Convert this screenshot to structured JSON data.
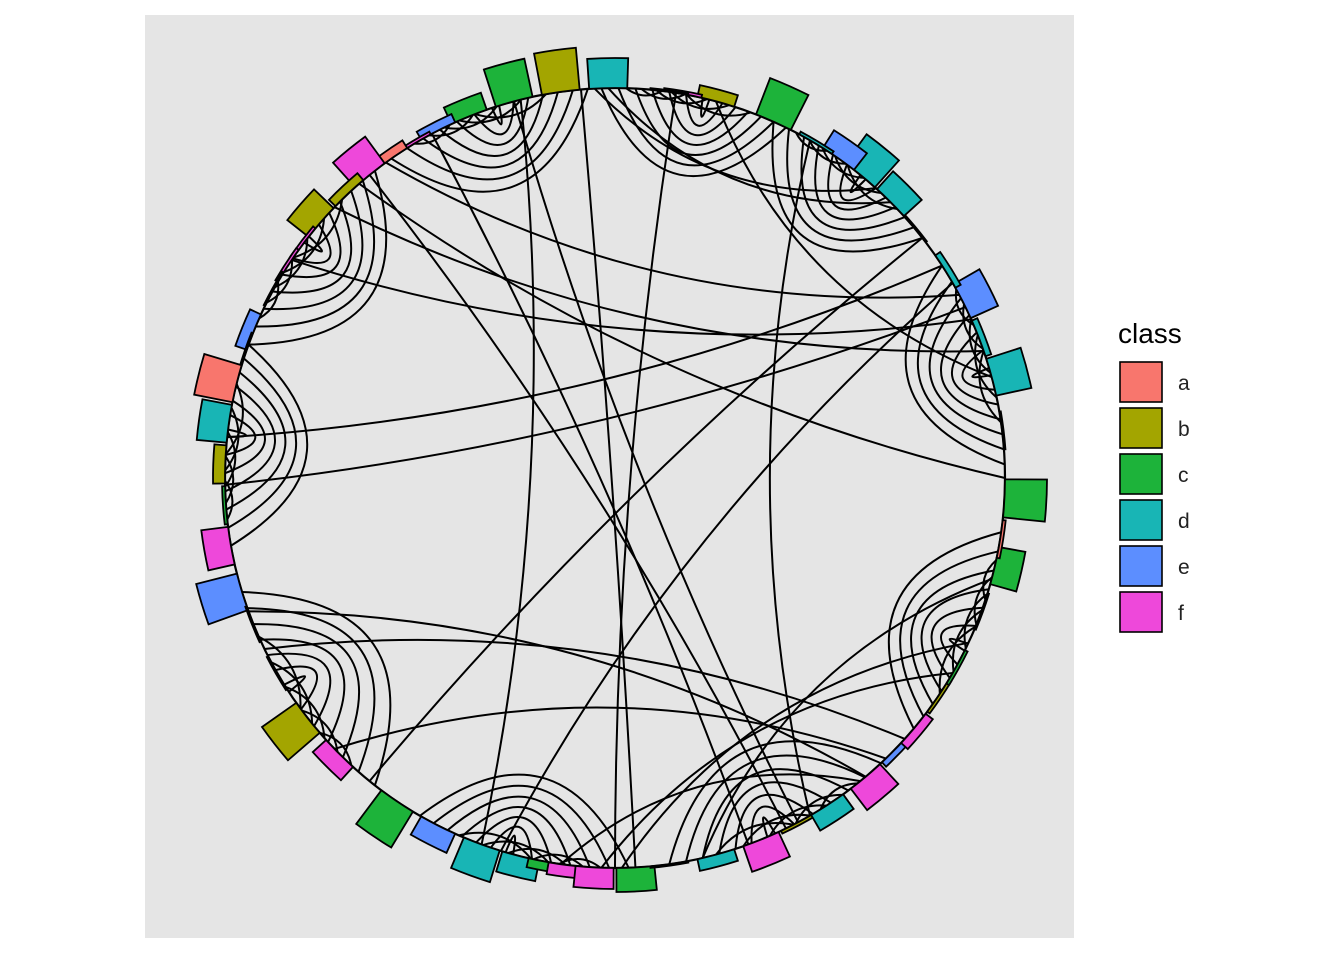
{
  "chart_data": {
    "type": "circular dendrogram",
    "title": "",
    "legend": {
      "title": "class",
      "position": "right",
      "entries": [
        {
          "label": "a",
          "color": "#F8766D"
        },
        {
          "label": "b",
          "color": "#A3A500"
        },
        {
          "label": "c",
          "color": "#1DB33A"
        },
        {
          "label": "d",
          "color": "#18B5B5"
        },
        {
          "label": "e",
          "color": "#5C8EFF"
        },
        {
          "label": "f",
          "color": "#EE48DA"
        }
      ]
    },
    "panel_background": "#E5E5E5",
    "grid": false,
    "leaf_bars": [
      {
        "angle": 91,
        "value": 1.0,
        "class": "d"
      },
      {
        "angle": 98,
        "value": 1.4,
        "class": "b"
      },
      {
        "angle": 105,
        "value": 1.3,
        "class": "c"
      },
      {
        "angle": 112,
        "value": 0.6,
        "class": "c"
      },
      {
        "angle": 117,
        "value": 0.3,
        "class": "e"
      },
      {
        "angle": 121,
        "value": 0.1,
        "class": "f"
      },
      {
        "angle": 125,
        "value": 0.3,
        "class": "a"
      },
      {
        "angle": 129,
        "value": 1.1,
        "class": "f"
      },
      {
        "angle": 133,
        "value": 0.3,
        "class": "b"
      },
      {
        "angle": 139,
        "value": 0.9,
        "class": "b"
      },
      {
        "angle": 143,
        "value": 0.1,
        "class": "f"
      },
      {
        "angle": 147,
        "value": 0.1,
        "class": "f"
      },
      {
        "angle": 151,
        "value": 0.05,
        "class": "c"
      },
      {
        "angle": 158,
        "value": 0.4,
        "class": "e"
      },
      {
        "angle": 161,
        "value": 0.05,
        "class": "f"
      },
      {
        "angle": 166,
        "value": 1.3,
        "class": "a"
      },
      {
        "angle": 172,
        "value": 1.0,
        "class": "d"
      },
      {
        "angle": 178,
        "value": 0.4,
        "class": "b"
      },
      {
        "angle": 184,
        "value": 0.1,
        "class": "c"
      },
      {
        "angle": 190,
        "value": 0.9,
        "class": "f"
      },
      {
        "angle": 197,
        "value": 1.4,
        "class": "e"
      },
      {
        "angle": 202,
        "value": 0.05,
        "class": "a"
      },
      {
        "angle": 210,
        "value": 0.05,
        "class": "c"
      },
      {
        "angle": 218,
        "value": 1.4,
        "class": "b"
      },
      {
        "angle": 225,
        "value": 0.6,
        "class": "f"
      },
      {
        "angle": 236,
        "value": 1.4,
        "class": "c"
      },
      {
        "angle": 243,
        "value": 0.7,
        "class": "e"
      },
      {
        "angle": 250,
        "value": 1.1,
        "class": "d"
      },
      {
        "angle": 256,
        "value": 0.7,
        "class": "d"
      },
      {
        "angle": 260,
        "value": 0.3,
        "class": "c"
      },
      {
        "angle": 263,
        "value": 0.4,
        "class": "f"
      },
      {
        "angle": 267,
        "value": 0.7,
        "class": "f"
      },
      {
        "angle": 273,
        "value": 0.8,
        "class": "c"
      },
      {
        "angle": 278,
        "value": 0.05,
        "class": "f"
      },
      {
        "angle": 285,
        "value": 0.4,
        "class": "d"
      },
      {
        "angle": 292,
        "value": 0.9,
        "class": "f"
      },
      {
        "angle": 298,
        "value": 0.1,
        "class": "b"
      },
      {
        "angle": 303,
        "value": 0.6,
        "class": "d"
      },
      {
        "angle": 310,
        "value": 0.9,
        "class": "f"
      },
      {
        "angle": 316,
        "value": 0.2,
        "class": "e"
      },
      {
        "angle": 320,
        "value": 0.3,
        "class": "f"
      },
      {
        "angle": 326,
        "value": 0.1,
        "class": "b"
      },
      {
        "angle": 331,
        "value": 0.1,
        "class": "c"
      },
      {
        "angle": 340,
        "value": 0.05,
        "class": "e"
      },
      {
        "angle": 347,
        "value": 0.9,
        "class": "c"
      },
      {
        "angle": 351,
        "value": 0.1,
        "class": "a"
      },
      {
        "angle": 357,
        "value": 1.4,
        "class": "c"
      },
      {
        "angle": 7,
        "value": 0.05,
        "class": "e"
      },
      {
        "angle": 15,
        "value": 1.2,
        "class": "d"
      },
      {
        "angle": 21,
        "value": 0.2,
        "class": "d"
      },
      {
        "angle": 27,
        "value": 1.0,
        "class": "e"
      },
      {
        "angle": 32,
        "value": 0.2,
        "class": "d"
      },
      {
        "angle": 40,
        "value": 0.05,
        "class": "b"
      },
      {
        "angle": 45,
        "value": 0.8,
        "class": "d"
      },
      {
        "angle": 51,
        "value": 1.2,
        "class": "d"
      },
      {
        "angle": 55,
        "value": 0.7,
        "class": "e"
      },
      {
        "angle": 59,
        "value": 0.1,
        "class": "d"
      },
      {
        "angle": 66,
        "value": 1.3,
        "class": "c"
      },
      {
        "angle": 75,
        "value": 0.4,
        "class": "b"
      },
      {
        "angle": 80,
        "value": 0.1,
        "class": "f"
      },
      {
        "angle": 82,
        "value": 0.05,
        "class": "d"
      }
    ],
    "edges": [
      [
        91,
        45
      ],
      [
        93,
        48
      ],
      [
        126,
        28
      ],
      [
        131,
        0
      ],
      [
        136,
        19
      ],
      [
        146,
        24
      ],
      [
        174,
        33
      ],
      [
        181,
        26
      ],
      [
        95,
        273
      ],
      [
        104,
        250
      ],
      [
        118,
        290
      ],
      [
        129,
        296
      ],
      [
        105,
        298
      ],
      [
        200,
        310
      ],
      [
        206,
        318
      ],
      [
        224,
        314
      ],
      [
        231,
        38
      ],
      [
        253,
        30
      ],
      [
        262,
        309
      ],
      [
        268,
        330
      ],
      [
        271,
        335
      ],
      [
        283,
        345
      ],
      [
        60,
        300
      ],
      [
        75,
        15
      ],
      [
        81,
        270
      ]
    ],
    "clusters": [
      {
        "start": 94,
        "end": 125,
        "depth": 0.62
      },
      {
        "start": 128,
        "end": 160,
        "depth": 0.6
      },
      {
        "start": 160,
        "end": 190,
        "depth": 0.62
      },
      {
        "start": 197,
        "end": 232,
        "depth": 0.55
      },
      {
        "start": 240,
        "end": 272,
        "depth": 0.62
      },
      {
        "start": 278,
        "end": 313,
        "depth": 0.6
      },
      {
        "start": 320,
        "end": 352,
        "depth": 0.62
      },
      {
        "start": 2,
        "end": 33,
        "depth": 0.62
      },
      {
        "start": 38,
        "end": 66,
        "depth": 0.6
      },
      {
        "start": 64,
        "end": 92,
        "depth": 0.62
      }
    ]
  }
}
